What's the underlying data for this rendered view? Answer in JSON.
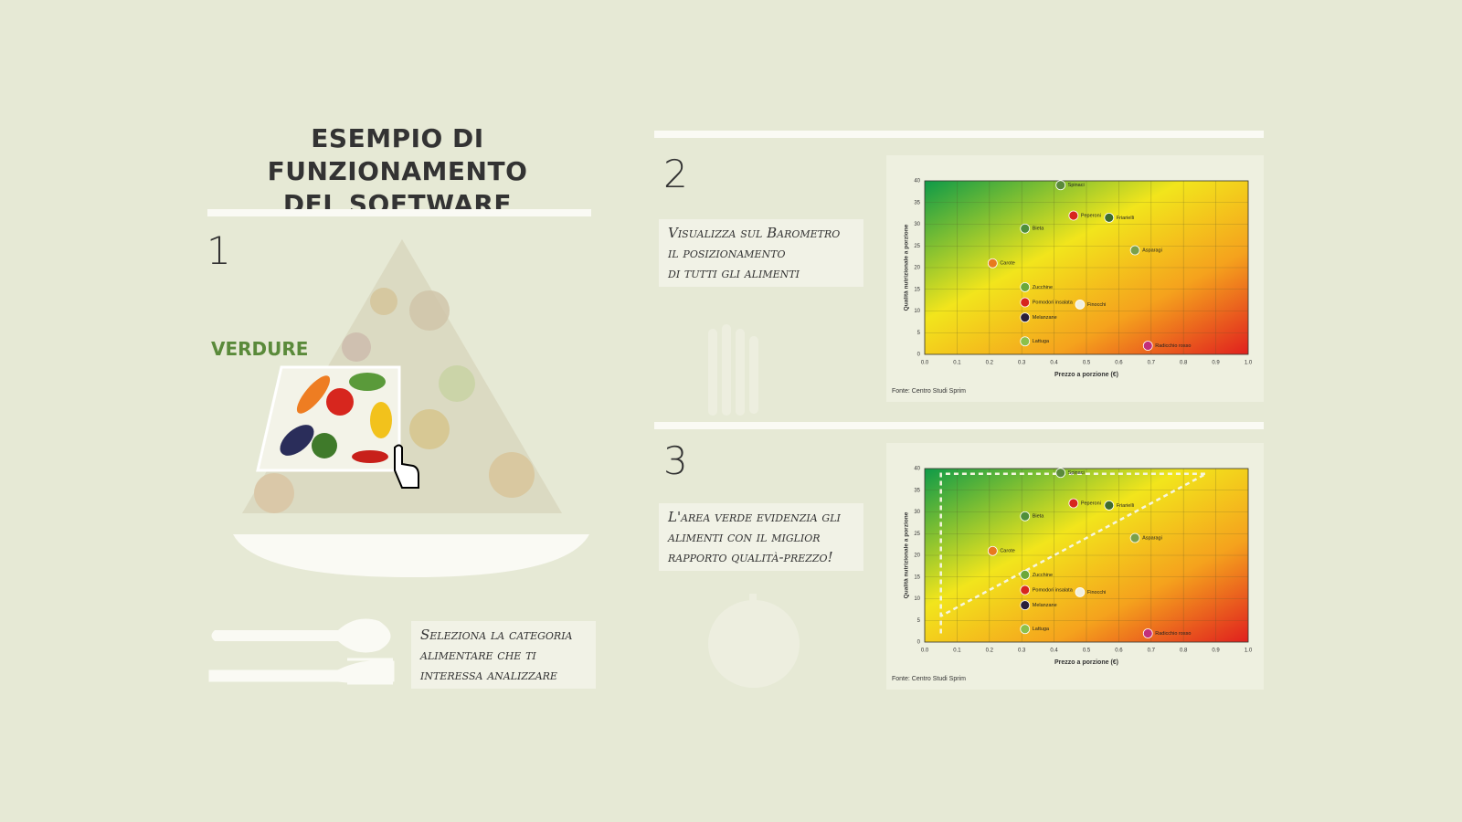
{
  "header": {
    "title_lines": [
      "ESEMPIO DI FUNZIONAMENTO",
      "DEL SOFTWARE"
    ]
  },
  "steps": [
    {
      "number": "1",
      "category": "VERDURE",
      "caption_lines": [
        "Seleziona la categoria",
        "alimentare che ti",
        "interessa analizzare"
      ]
    },
    {
      "number": "2",
      "caption_lines": [
        "Visualizza sul Barometro",
        "il posizionamento",
        "di tutti gli alimenti"
      ]
    },
    {
      "number": "3",
      "caption_lines": [
        "L'area verde evidenzia gli",
        "alimenti con il miglior",
        "rapporto qualità-prezzo!"
      ]
    }
  ],
  "chart_data": [
    {
      "type": "scatter",
      "xlabel": "Prezzo a porzione (€)",
      "ylabel": "Qualità nutrizionale a porzione",
      "source": "Fonte: Centro Studi Sprim",
      "x": [
        0.42,
        0.46,
        0.57,
        0.31,
        0.65,
        0.21,
        0.31,
        0.31,
        0.48,
        0.31,
        0.31,
        0.69
      ],
      "values": [
        39,
        32,
        31.5,
        29,
        24,
        21,
        15.5,
        12,
        11.5,
        8.5,
        3,
        2
      ],
      "point_labels": [
        "Spinaci",
        "Peperoni",
        "Friarielli",
        "Bieta",
        "Asparagi",
        "Carote",
        "Zucchine",
        "Pomodori insalata",
        "Finocchi",
        "Melanzane",
        "Lattuga",
        "Radicchio rosso"
      ],
      "colors": [
        "#5a8a3a",
        "#d7261e",
        "#3e6b2e",
        "#4f8f3a",
        "#7aa04a",
        "#e87a1e",
        "#6ca83a",
        "#d7261e",
        "#f0f0e0",
        "#2a1f3a",
        "#8cc04a",
        "#c2307a"
      ],
      "xlim": [
        0,
        1
      ],
      "ylim": [
        0,
        40
      ],
      "xticks": [
        {
          "value": 0,
          "label": "0.0"
        },
        {
          "value": 0.1,
          "label": "0.1"
        },
        {
          "value": 0.2,
          "label": "0.2"
        },
        {
          "value": 0.3,
          "label": "0.3"
        },
        {
          "value": 0.4,
          "label": "0.4"
        },
        {
          "value": 0.5,
          "label": "0.5"
        },
        {
          "value": 0.6,
          "label": "0.6"
        },
        {
          "value": 0.7,
          "label": "0.7"
        },
        {
          "value": 0.8,
          "label": "0.8"
        },
        {
          "value": 0.9,
          "label": "0.9"
        },
        {
          "value": 1,
          "label": "1.0"
        }
      ],
      "yticks": [
        0,
        5,
        10,
        15,
        20,
        25,
        30,
        35,
        40
      ],
      "grid": true,
      "highlight_area": false
    },
    {
      "type": "scatter",
      "xlabel": "Prezzo a porzione (€)",
      "ylabel": "Qualità nutrizionale a porzione",
      "source": "Fonte: Centro Studi Sprim",
      "x": [
        0.42,
        0.46,
        0.57,
        0.31,
        0.65,
        0.21,
        0.31,
        0.31,
        0.48,
        0.31,
        0.31,
        0.69
      ],
      "values": [
        39,
        32,
        31.5,
        29,
        24,
        21,
        15.5,
        12,
        11.5,
        8.5,
        3,
        2
      ],
      "point_labels": [
        "Spinaci",
        "Peperoni",
        "Friarielli",
        "Bieta",
        "Asparagi",
        "Carote",
        "Zucchine",
        "Pomodori insalata",
        "Finocchi",
        "Melanzane",
        "Lattuga",
        "Radicchio rosso"
      ],
      "colors": [
        "#5a8a3a",
        "#d7261e",
        "#3e6b2e",
        "#4f8f3a",
        "#7aa04a",
        "#e87a1e",
        "#6ca83a",
        "#d7261e",
        "#f0f0e0",
        "#2a1f3a",
        "#8cc04a",
        "#c2307a"
      ],
      "xlim": [
        0,
        1
      ],
      "ylim": [
        0,
        40
      ],
      "xticks": [
        {
          "value": 0,
          "label": "0.0"
        },
        {
          "value": 0.1,
          "label": "0.1"
        },
        {
          "value": 0.2,
          "label": "0.2"
        },
        {
          "value": 0.3,
          "label": "0.3"
        },
        {
          "value": 0.4,
          "label": "0.4"
        },
        {
          "value": 0.5,
          "label": "0.5"
        },
        {
          "value": 0.6,
          "label": "0.6"
        },
        {
          "value": 0.7,
          "label": "0.7"
        },
        {
          "value": 0.8,
          "label": "0.8"
        },
        {
          "value": 0.9,
          "label": "0.9"
        },
        {
          "value": 1,
          "label": "1.0"
        }
      ],
      "yticks": [
        0,
        5,
        10,
        15,
        20,
        25,
        30,
        35,
        40
      ],
      "grid": true,
      "highlight_area": true
    }
  ]
}
